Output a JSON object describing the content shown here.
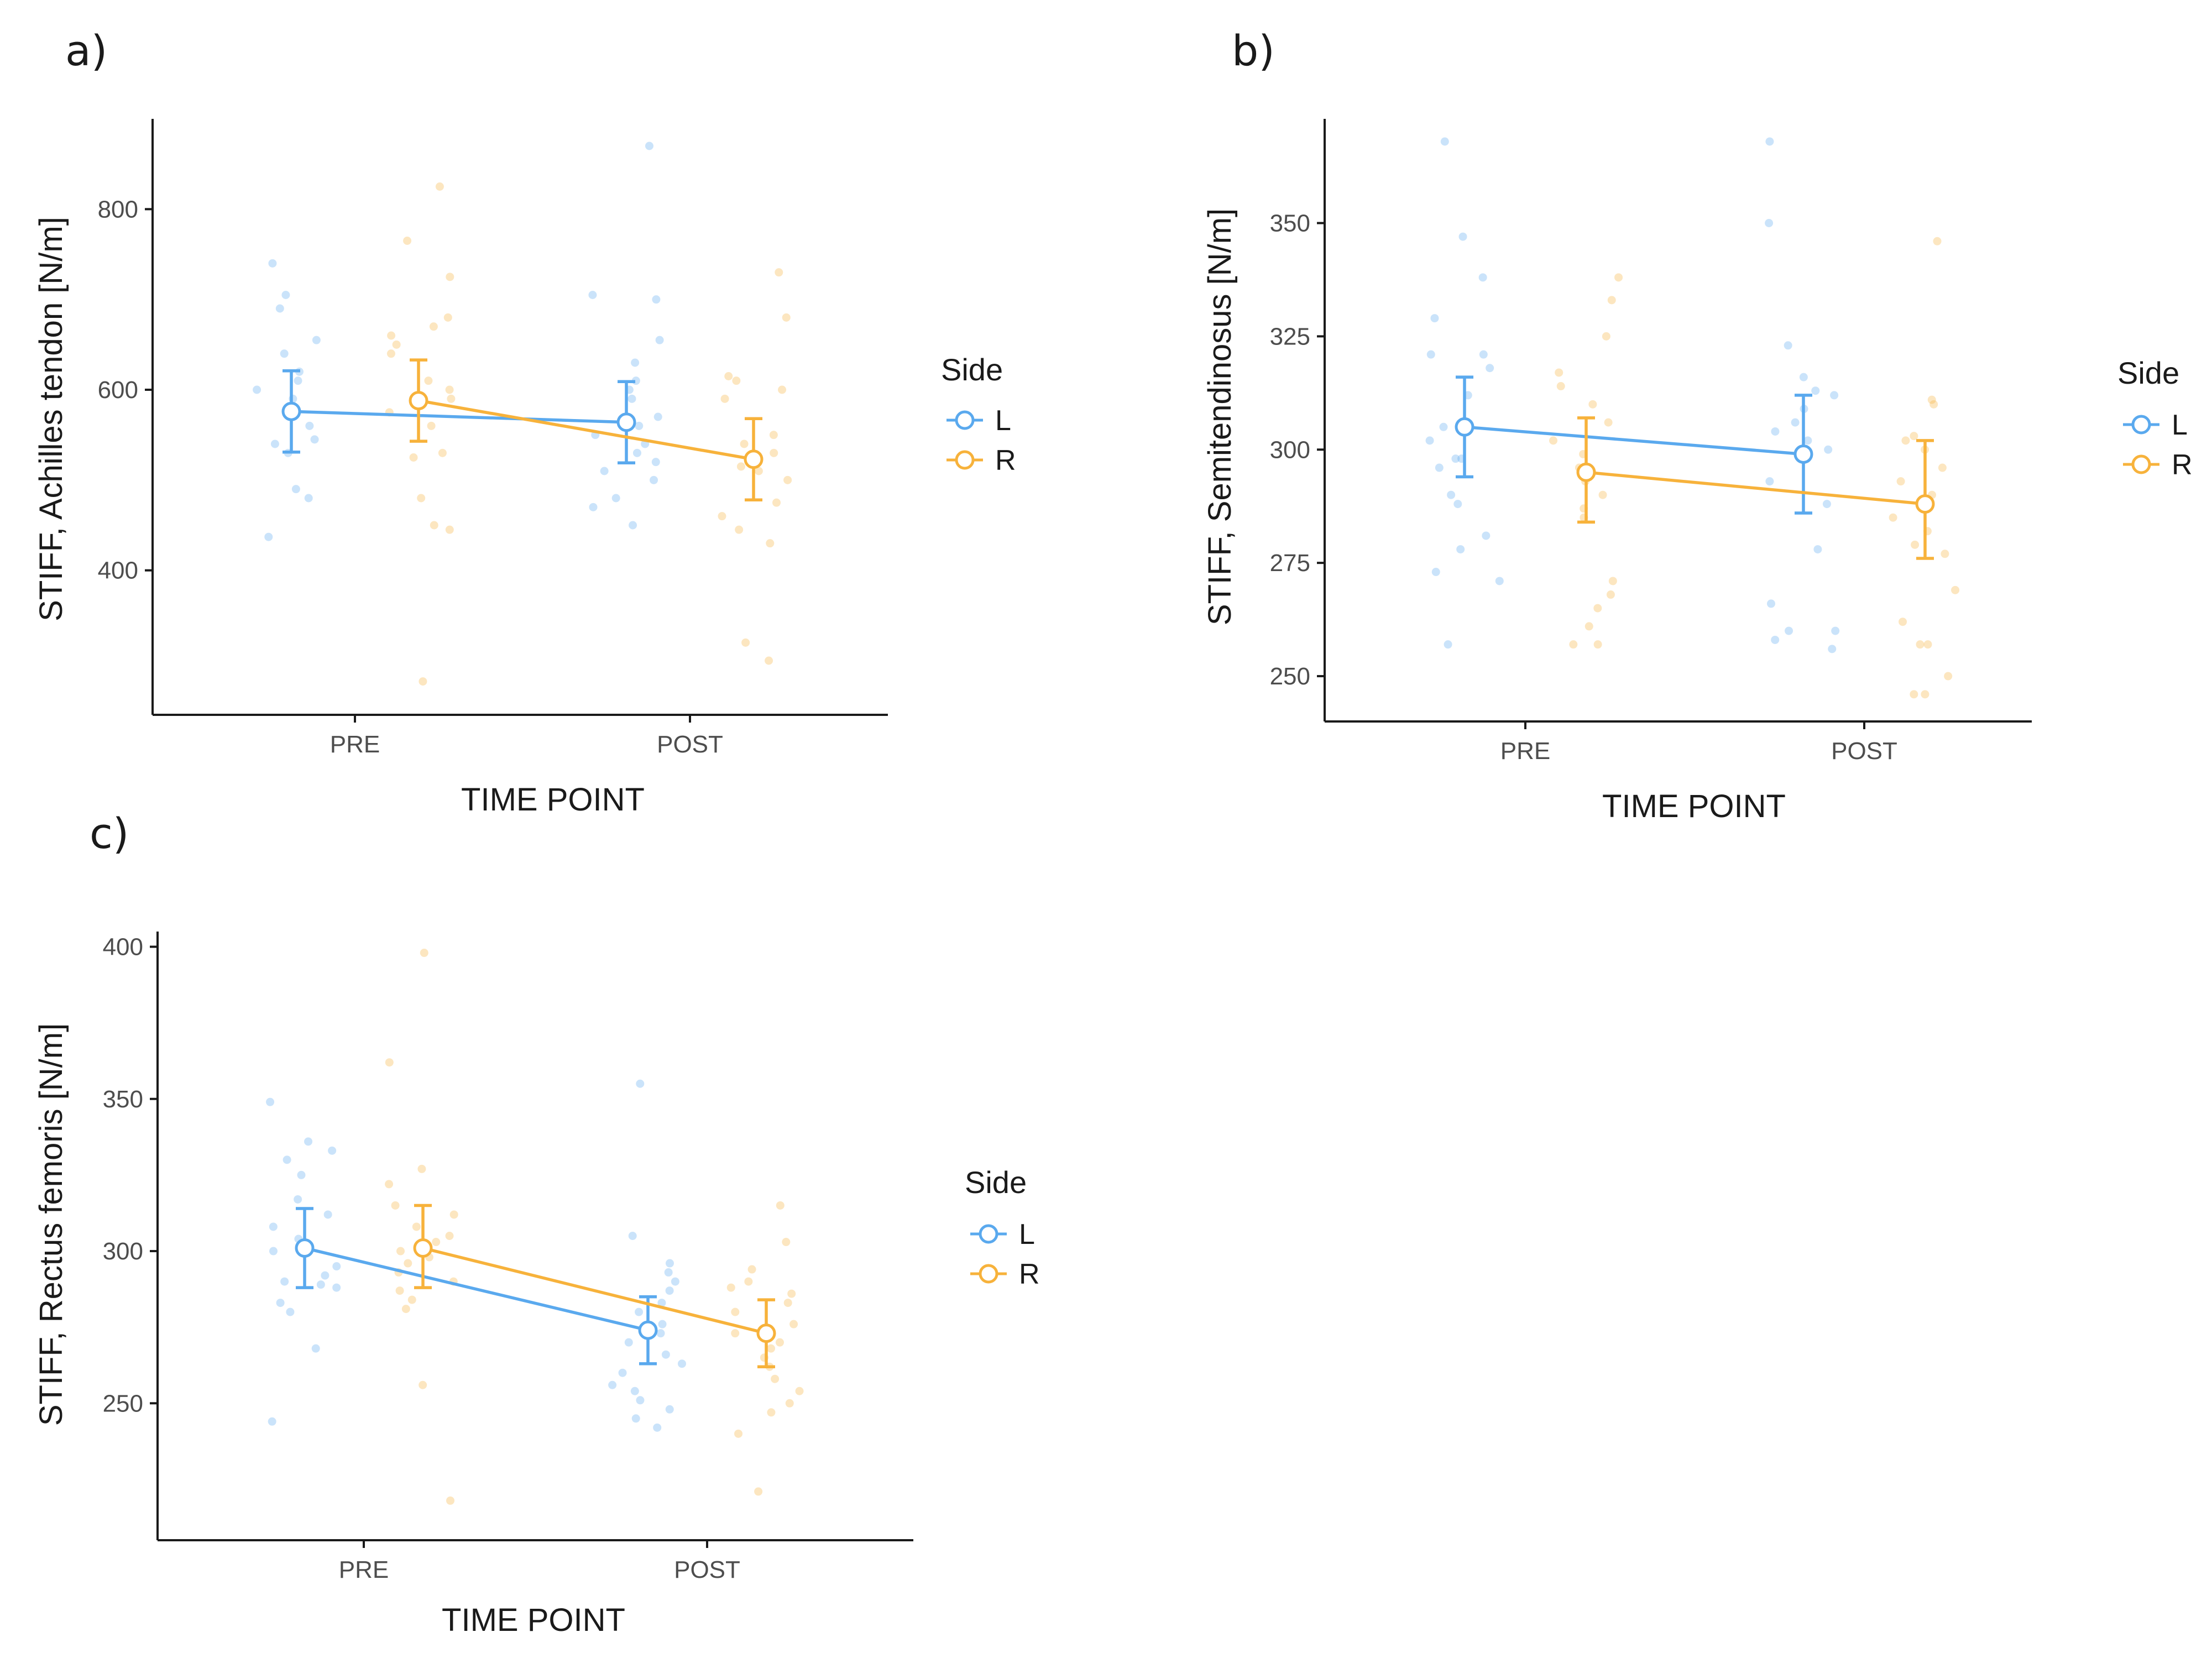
{
  "colors": {
    "L": "#5aa9ee",
    "R": "#f7b23b",
    "axis": "#1a1a1a",
    "tick_label": "#4d4d4d"
  },
  "chart_data": [
    {
      "type": "line",
      "panel_label": "a)",
      "xlabel": "TIME POINT",
      "ylabel": "STIFF, Achilles tendon [N/m]",
      "categories": [
        "PRE",
        "POST"
      ],
      "yticks": [
        400,
        600,
        800
      ],
      "ylim": [
        240,
        900
      ],
      "legend": {
        "title": "Side",
        "position": "right"
      },
      "series": [
        {
          "name": "L",
          "means": [
            576,
            564
          ],
          "ci_low": [
            531,
            519
          ],
          "ci_high": [
            621,
            609
          ],
          "points": [
            [
              437,
              480,
              490,
              530,
              540,
              545,
              560,
              575,
              580,
              590,
              600,
              610,
              620,
              640,
              655,
              690,
              705,
              740
            ],
            [
              450,
              470,
              480,
              500,
              510,
              520,
              530,
              540,
              550,
              560,
              570,
              590,
              600,
              610,
              630,
              655,
              700,
              705,
              870
            ]
          ]
        },
        {
          "name": "R",
          "means": [
            588,
            523
          ],
          "ci_low": [
            543,
            478
          ],
          "ci_high": [
            633,
            568
          ],
          "points": [
            [
              277,
              445,
              450,
              480,
              525,
              530,
              560,
              575,
              590,
              600,
              610,
              640,
              650,
              660,
              670,
              680,
              725,
              765,
              825
            ],
            [
              300,
              320,
              430,
              445,
              460,
              475,
              500,
              510,
              515,
              530,
              540,
              550,
              590,
              600,
              610,
              615,
              680,
              730
            ]
          ]
        }
      ]
    },
    {
      "type": "line",
      "panel_label": "b)",
      "xlabel": "TIME POINT",
      "ylabel": "STIFF, Semitendinosus [N/m]",
      "categories": [
        "PRE",
        "POST"
      ],
      "yticks": [
        250,
        275,
        300,
        325,
        350
      ],
      "ylim": [
        240,
        373
      ],
      "legend": {
        "title": "Side",
        "position": "right"
      },
      "series": [
        {
          "name": "L",
          "means": [
            305,
            299
          ],
          "ci_low": [
            294,
            286
          ],
          "ci_high": [
            316,
            312
          ],
          "points": [
            [
              257,
              271,
              273,
              278,
              281,
              288,
              290,
              296,
              298,
              298,
              302,
              305,
              312,
              318,
              321,
              321,
              329,
              338,
              347,
              368
            ],
            [
              256,
              258,
              260,
              260,
              266,
              278,
              288,
              293,
              298,
              300,
              302,
              304,
              306,
              309,
              312,
              313,
              316,
              323,
              350,
              368
            ]
          ]
        },
        {
          "name": "R",
          "means": [
            295,
            288
          ],
          "ci_low": [
            284,
            276
          ],
          "ci_high": [
            307,
            302
          ],
          "points": [
            [
              257,
              257,
              261,
              265,
              268,
              271,
              285,
              287,
              290,
              293,
              296,
              299,
              302,
              306,
              310,
              314,
              317,
              325,
              333,
              338
            ],
            [
              246,
              246,
              250,
              257,
              257,
              262,
              269,
              277,
              279,
              282,
              285,
              290,
              293,
              296,
              300,
              302,
              303,
              310,
              311,
              346
            ]
          ]
        }
      ]
    },
    {
      "type": "line",
      "panel_label": "c)",
      "xlabel": "TIME POINT",
      "ylabel": "STIFF, Rectus femoris [N/m]",
      "categories": [
        "PRE",
        "POST"
      ],
      "yticks": [
        250,
        300,
        350,
        400
      ],
      "ylim": [
        205,
        405
      ],
      "legend": {
        "title": "Side",
        "position": "right"
      },
      "series": [
        {
          "name": "L",
          "means": [
            301,
            274
          ],
          "ci_low": [
            288,
            263
          ],
          "ci_high": [
            314,
            285
          ],
          "points": [
            [
              244,
              268,
              280,
              283,
              288,
              289,
              290,
              292,
              295,
              300,
              304,
              308,
              312,
              317,
              325,
              330,
              333,
              336,
              349
            ],
            [
              242,
              245,
              248,
              251,
              254,
              256,
              260,
              263,
              266,
              270,
              273,
              276,
              280,
              283,
              287,
              290,
              293,
              296,
              305,
              355
            ]
          ]
        },
        {
          "name": "R",
          "means": [
            301,
            273
          ],
          "ci_low": [
            288,
            262
          ],
          "ci_high": [
            315,
            284
          ],
          "points": [
            [
              218,
              256,
              281,
              284,
              287,
              290,
              293,
              296,
              298,
              300,
              303,
              305,
              308,
              312,
              315,
              322,
              327,
              362,
              398
            ],
            [
              221,
              240,
              247,
              250,
              254,
              258,
              262,
              265,
              268,
              270,
              273,
              276,
              280,
              283,
              286,
              288,
              290,
              294,
              303,
              315
            ]
          ]
        }
      ]
    }
  ]
}
